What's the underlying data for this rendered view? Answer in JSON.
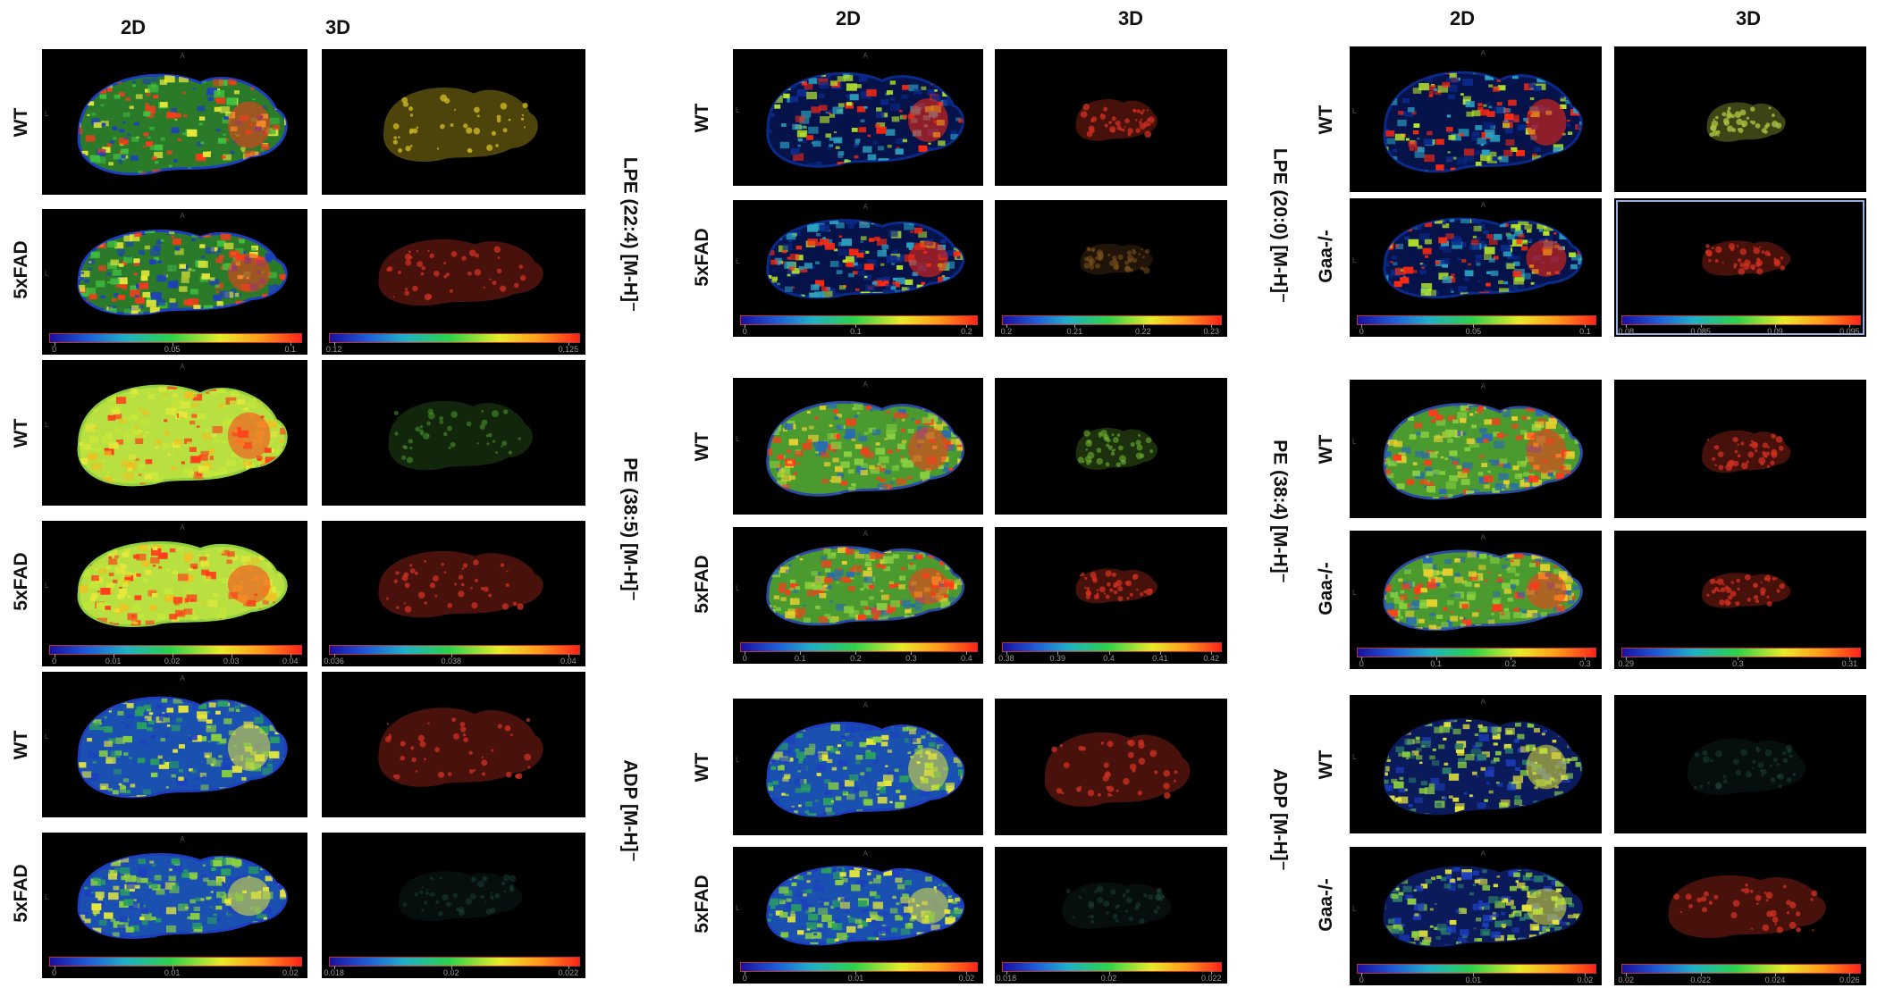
{
  "groups": [
    {
      "col_2d": "2D",
      "col_3d": "3D",
      "molecules": [
        "LPE (22:4) [M-H]⁻",
        "PE (38:5) [M-H]⁻",
        "ADP [M-H]⁻"
      ],
      "rows": [
        {
          "label": "WT",
          "scheme2d": "lpe",
          "scheme3d": "yellow"
        },
        {
          "label": "5xFAD",
          "scheme2d": "lpe",
          "scheme3d": "red",
          "ticks2d": [
            "0",
            "0.05",
            "0.1"
          ],
          "ticks3d": [
            "0.12",
            "0.125"
          ]
        },
        {
          "label": "WT",
          "scheme2d": "pe-yellow",
          "scheme3d": "green"
        },
        {
          "label": "5xFAD",
          "scheme2d": "pe-yellow",
          "scheme3d": "red",
          "ticks2d": [
            "0",
            "0.01",
            "0.02",
            "0.03",
            "0.04"
          ],
          "ticks3d": [
            "0.036",
            "0.038",
            "0.04"
          ]
        },
        {
          "label": "WT",
          "scheme2d": "adp",
          "scheme3d": "red"
        },
        {
          "label": "5xFAD",
          "scheme2d": "adp",
          "scheme3d": "faint",
          "ticks2d": [
            "0",
            "0.01",
            "0.02"
          ],
          "ticks3d": [
            "0.018",
            "0.02",
            "0.022"
          ]
        }
      ]
    },
    {
      "col_2d": "2D",
      "col_3d": "3D",
      "molecules": [],
      "rows": [
        {
          "label": "WT",
          "scheme2d": "lpe-dark",
          "scheme3d": "red-small"
        },
        {
          "label": "5xFAD",
          "scheme2d": "lpe-dark",
          "scheme3d": "faint-orange",
          "ticks2d": [
            "0",
            "0.1",
            "0.2"
          ],
          "ticks3d": [
            "0.2",
            "0.21",
            "0.22",
            "0.23"
          ]
        },
        {
          "label": "WT",
          "scheme2d": "pe",
          "scheme3d": "green-small"
        },
        {
          "label": "5xFAD",
          "scheme2d": "pe",
          "scheme3d": "red-small",
          "ticks2d": [
            "0",
            "0.1",
            "0.2",
            "0.3",
            "0.4"
          ],
          "ticks3d": [
            "0.38",
            "0.39",
            "0.4",
            "0.41",
            "0.42"
          ]
        },
        {
          "label": "WT",
          "scheme2d": "adp",
          "scheme3d": "red"
        },
        {
          "label": "5xFAD",
          "scheme2d": "adp",
          "scheme3d": "faint",
          "ticks2d": [
            "0",
            "0.01",
            "0.02"
          ],
          "ticks3d": [
            "0.018",
            "0.02",
            "0.022"
          ]
        }
      ]
    },
    {
      "col_2d": "2D",
      "col_3d": "3D",
      "molecules": [
        "LPE (20:0) [M-H]⁻",
        "PE (38:4) [M-H]⁻",
        "ADP [M-H]⁻"
      ],
      "rows": [
        {
          "label": "WT",
          "scheme2d": "lpe-dark",
          "scheme3d": "yellow-small"
        },
        {
          "label": "Gaa-/-",
          "scheme2d": "lpe-dark",
          "scheme3d": "red-small",
          "ticks2d": [
            "0",
            "0.05",
            "0.1"
          ],
          "ticks3d": [
            "0.08",
            "0.085",
            "0.09",
            "0.095"
          ]
        },
        {
          "label": "WT",
          "scheme2d": "pe",
          "scheme3d": "red-small"
        },
        {
          "label": "Gaa-/-",
          "scheme2d": "pe",
          "scheme3d": "red-small",
          "ticks2d": [
            "0",
            "0.1",
            "0.2",
            "0.3"
          ],
          "ticks3d": [
            "0.29",
            "0.3",
            "0.31"
          ]
        },
        {
          "label": "WT",
          "scheme2d": "adp-sparse",
          "scheme3d": "faint"
        },
        {
          "label": "Gaa-/-",
          "scheme2d": "adp-sparse",
          "scheme3d": "red",
          "ticks2d": [
            "0",
            "0.01",
            "0.02"
          ],
          "ticks3d": [
            "0.02",
            "0.022",
            "0.024",
            "0.026"
          ]
        }
      ]
    }
  ],
  "orientation_marks": {
    "anterior": "A",
    "left": "L"
  },
  "colorbar_colors": [
    "#1a10a0",
    "#1e5cd8",
    "#1fb0c8",
    "#2cd24a",
    "#e6ec2a",
    "#ff9a1a",
    "#ff2418"
  ]
}
